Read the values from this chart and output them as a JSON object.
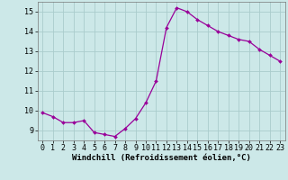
{
  "x": [
    0,
    1,
    2,
    3,
    4,
    5,
    6,
    7,
    8,
    9,
    10,
    11,
    12,
    13,
    14,
    15,
    16,
    17,
    18,
    19,
    20,
    21,
    22,
    23
  ],
  "y": [
    9.9,
    9.7,
    9.4,
    9.4,
    9.5,
    8.9,
    8.8,
    8.7,
    9.1,
    9.6,
    10.4,
    11.5,
    14.2,
    15.2,
    15.0,
    14.6,
    14.3,
    14.0,
    13.8,
    13.6,
    13.5,
    13.1,
    12.8,
    12.5
  ],
  "xlim": [
    -0.5,
    23.5
  ],
  "ylim": [
    8.5,
    15.5
  ],
  "yticks": [
    9,
    10,
    11,
    12,
    13,
    14,
    15
  ],
  "xticks": [
    0,
    1,
    2,
    3,
    4,
    5,
    6,
    7,
    8,
    9,
    10,
    11,
    12,
    13,
    14,
    15,
    16,
    17,
    18,
    19,
    20,
    21,
    22,
    23
  ],
  "xlabel": "Windchill (Refroidissement éolien,°C)",
  "line_color": "#990099",
  "marker": "D",
  "marker_size": 2.0,
  "bg_color": "#cce8e8",
  "grid_color": "#aacccc",
  "tick_fontsize": 6,
  "label_fontsize": 6.5
}
